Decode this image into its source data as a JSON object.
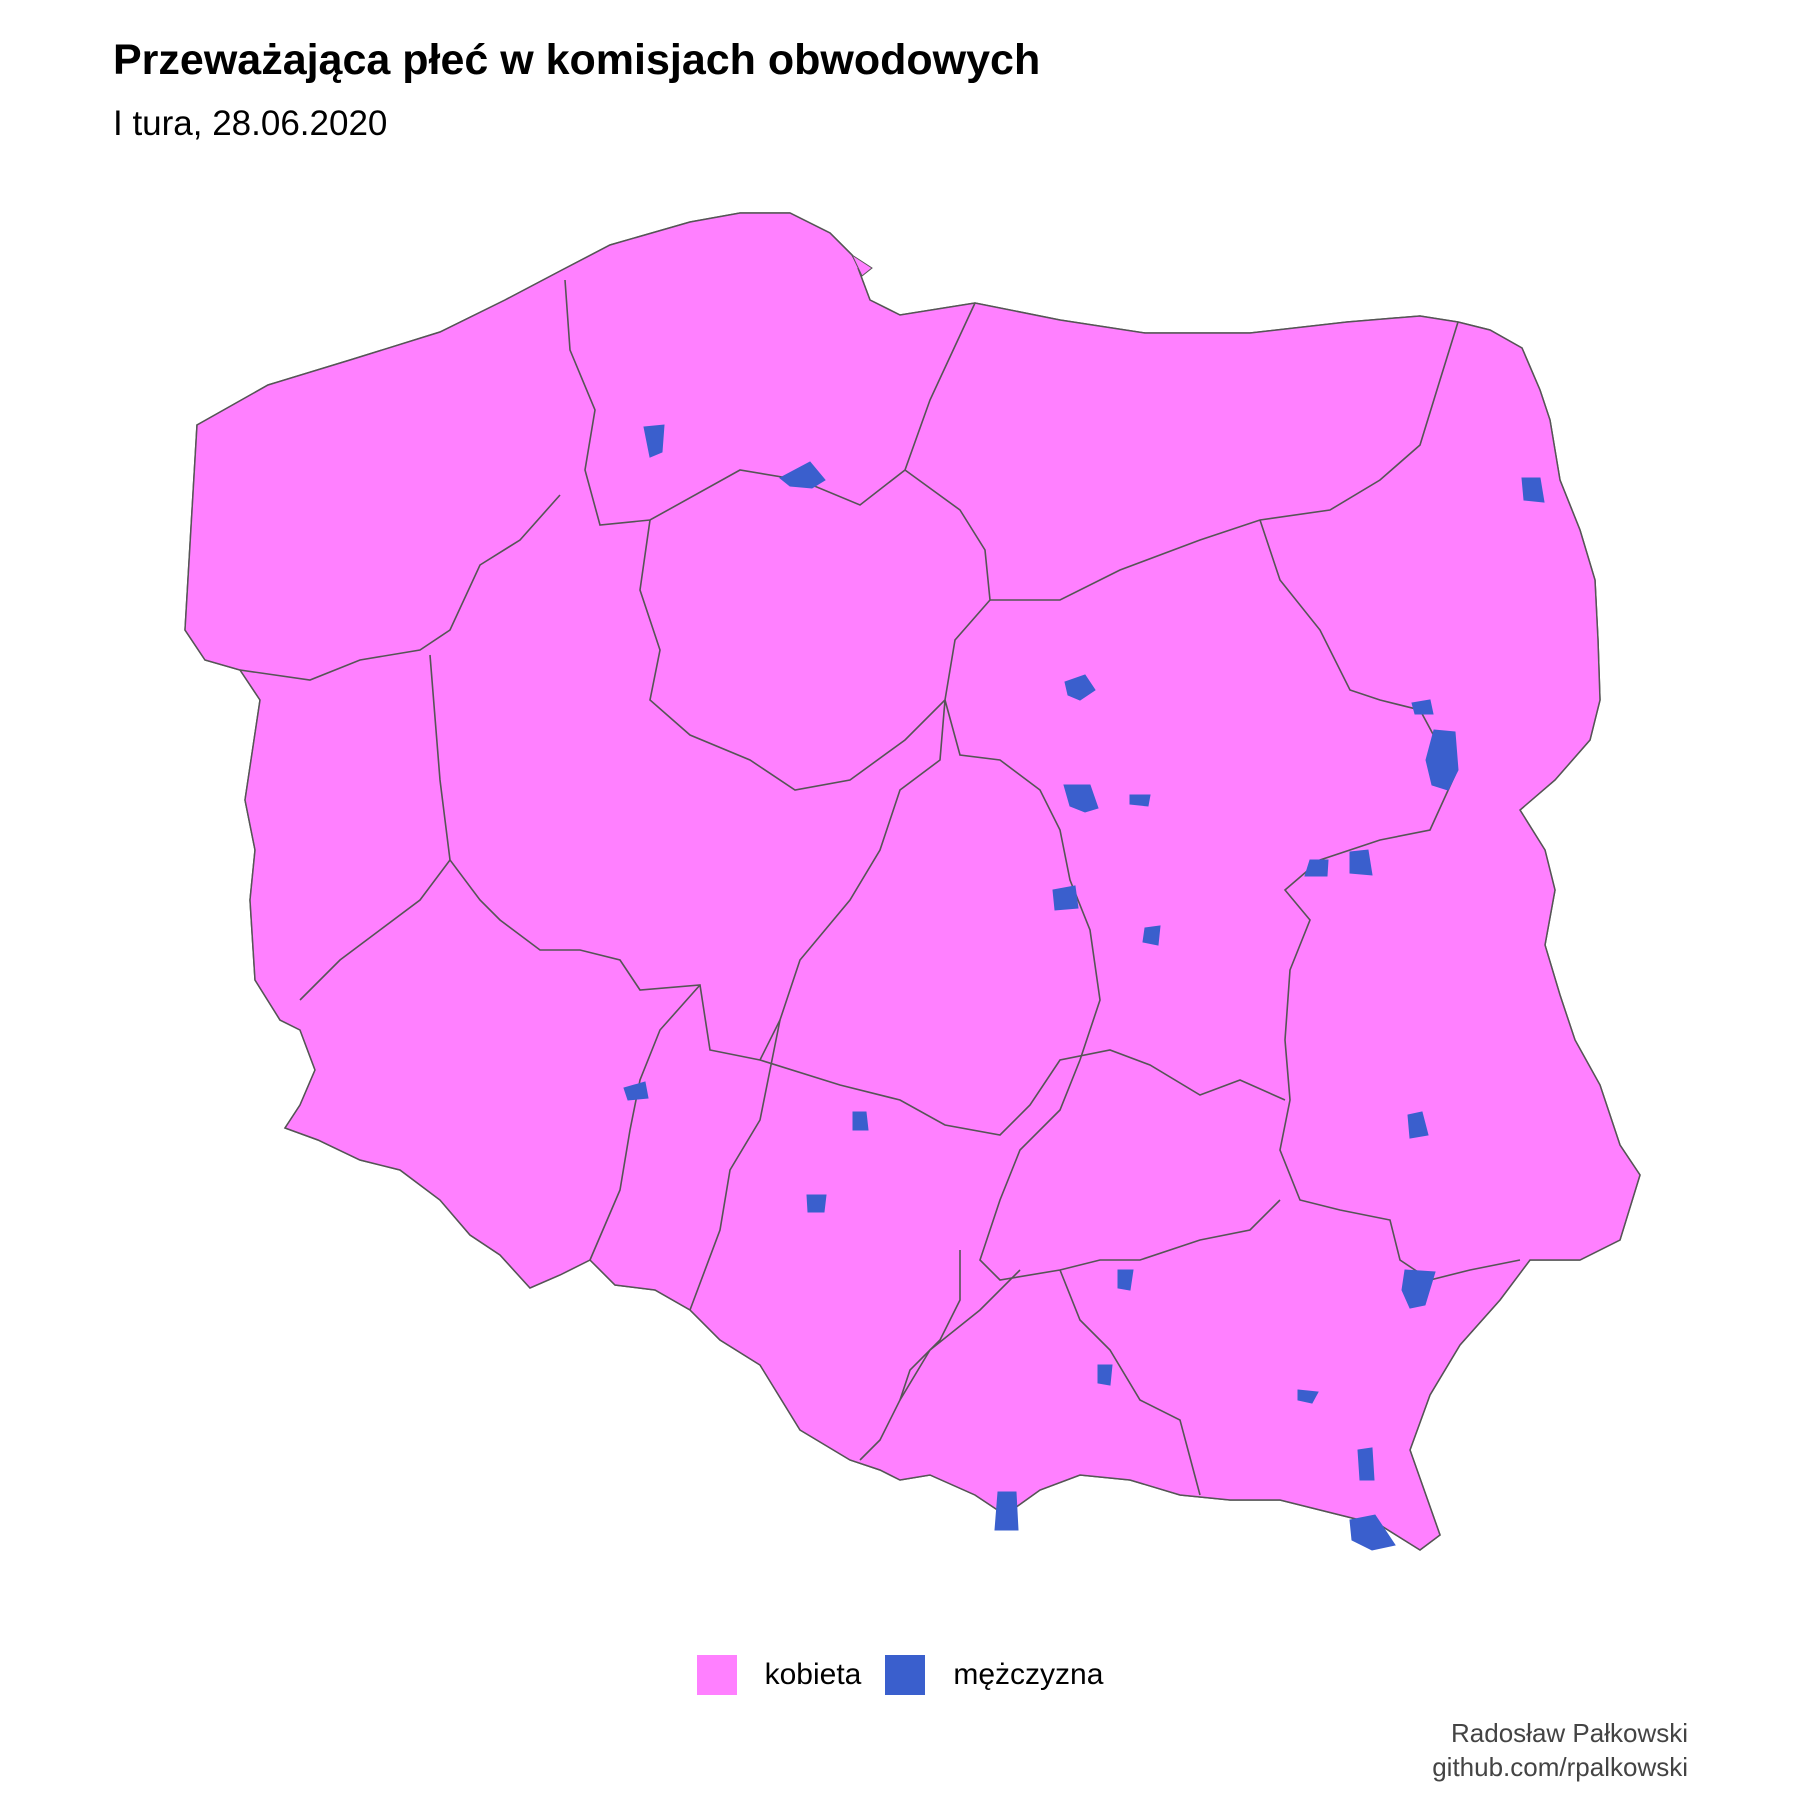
{
  "title": "Przeważająca płeć w komisjach obwodowych",
  "subtitle": "I tura, 28.06.2020",
  "legend": [
    {
      "label": "kobieta",
      "color": "#FF80FF"
    },
    {
      "label": "mężczyzna",
      "color": "#3A5FCD"
    }
  ],
  "colors": {
    "region_border": "#555555",
    "district_border": "#ffffff"
  },
  "caption": {
    "line1": "Radosław Pałkowski",
    "line2": "github.com/rpalkowski"
  }
}
